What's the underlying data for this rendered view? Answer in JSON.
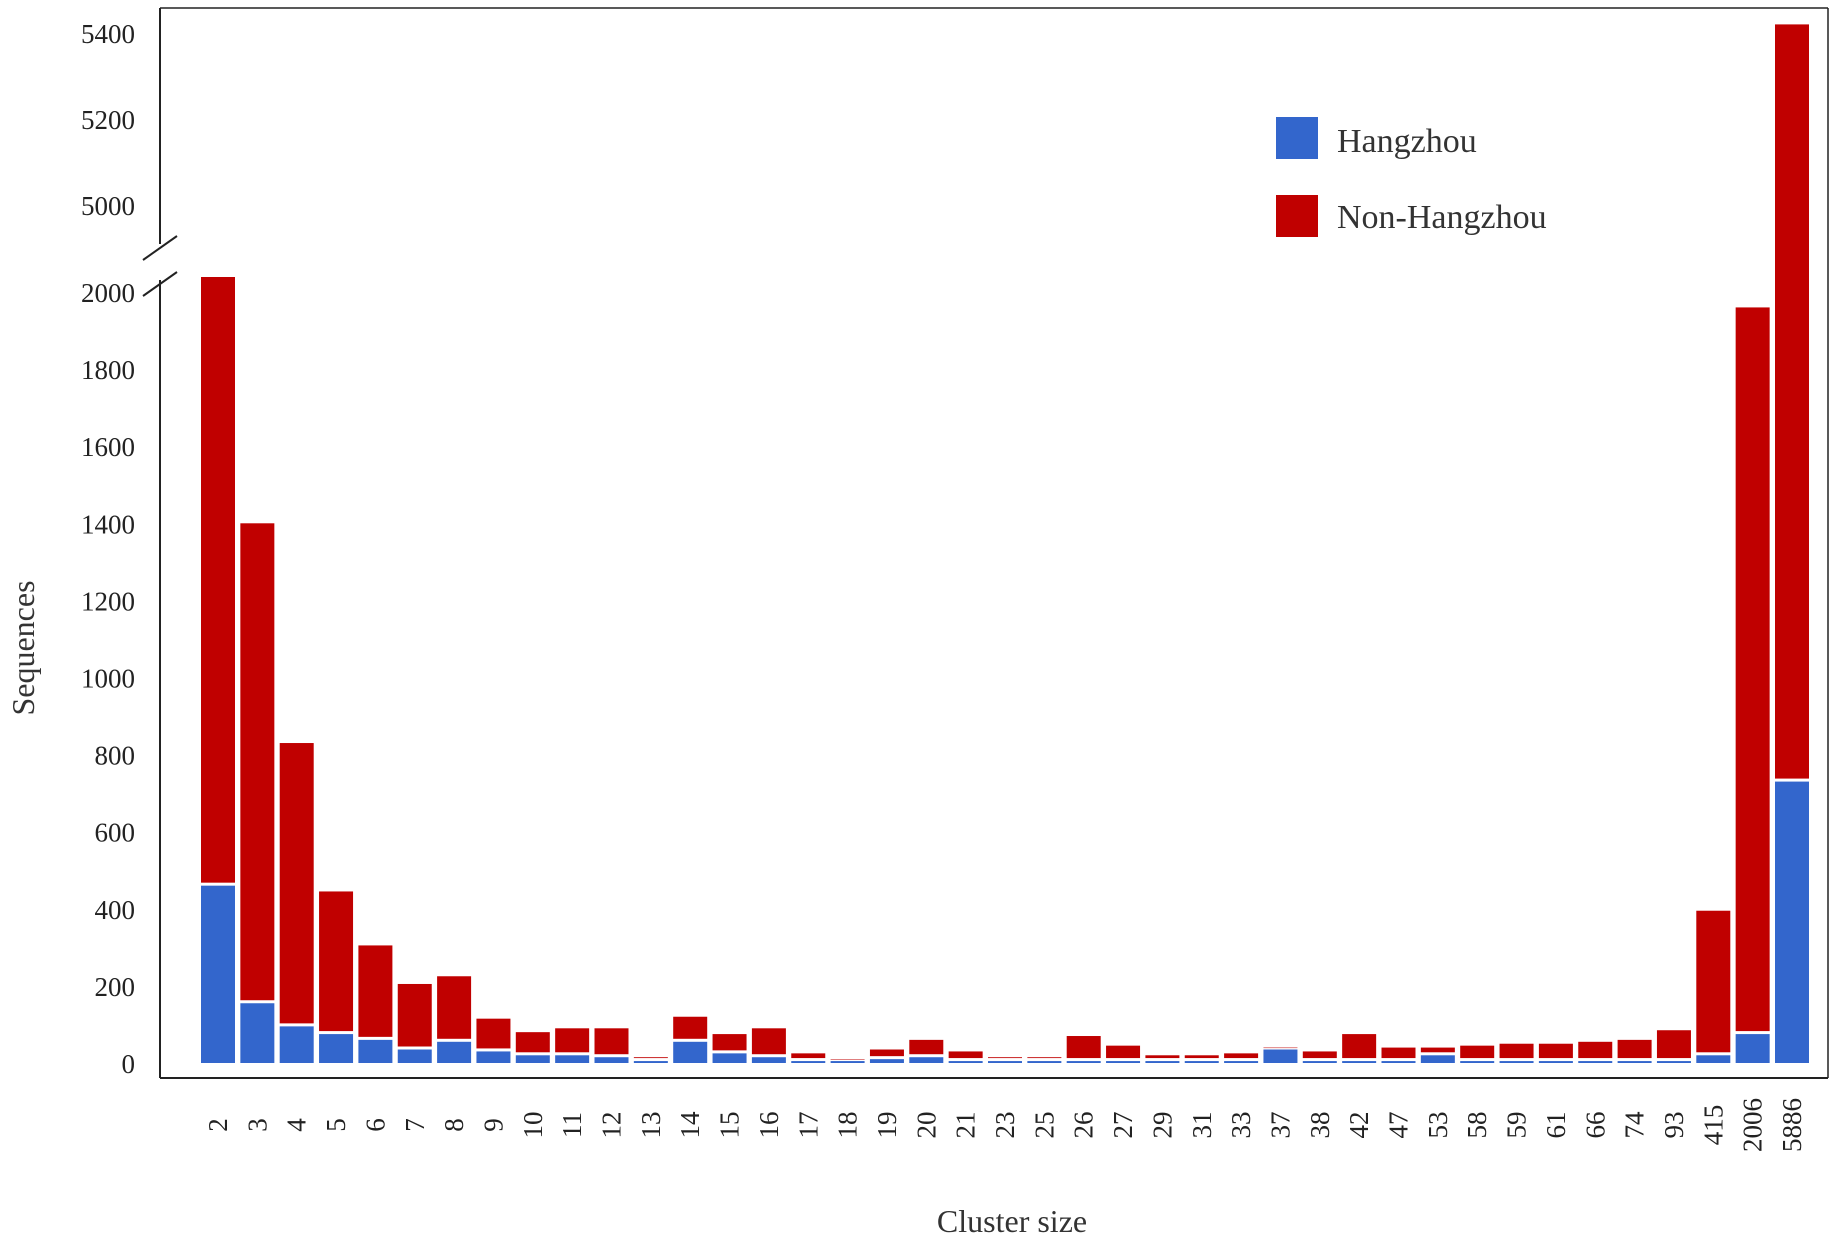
{
  "chart_data": {
    "type": "bar",
    "stacked": true,
    "title": "",
    "xlabel": "Cluster size",
    "ylabel": "Sequences",
    "axis_break": {
      "lower_range": [
        0,
        2000
      ],
      "upper_range": [
        5000,
        5400
      ]
    },
    "y_ticks_lower": [
      "0",
      "200",
      "400",
      "600",
      "800",
      "1000",
      "1200",
      "1400",
      "1600",
      "1800",
      "2000"
    ],
    "y_ticks_upper": [
      "5000",
      "5200",
      "5400"
    ],
    "legend_position": "top-right",
    "categories": [
      "2",
      "3",
      "4",
      "5",
      "6",
      "7",
      "8",
      "9",
      "10",
      "11",
      "12",
      "13",
      "14",
      "15",
      "16",
      "17",
      "18",
      "19",
      "20",
      "21",
      "23",
      "25",
      "26",
      "27",
      "29",
      "31",
      "33",
      "37",
      "38",
      "42",
      "47",
      "53",
      "58",
      "59",
      "61",
      "66",
      "74",
      "93",
      "415",
      "2006",
      "5886"
    ],
    "series": [
      {
        "name": "Hangzhou",
        "color": "#3366cc",
        "values": [
          460,
          155,
          95,
          75,
          60,
          35,
          55,
          30,
          20,
          20,
          15,
          5,
          55,
          25,
          15,
          5,
          5,
          10,
          15,
          5,
          5,
          5,
          5,
          5,
          5,
          5,
          5,
          35,
          5,
          5,
          5,
          20,
          5,
          5,
          5,
          5,
          5,
          5,
          20,
          75,
          730
        ]
      },
      {
        "name": "Non-Hangzhou",
        "color": "#c00000",
        "values": [
          4480,
          1245,
          735,
          370,
          245,
          170,
          170,
          85,
          60,
          70,
          75,
          10,
          65,
          50,
          75,
          20,
          5,
          25,
          45,
          25,
          10,
          10,
          65,
          40,
          15,
          15,
          20,
          5,
          25,
          70,
          35,
          20,
          40,
          45,
          45,
          50,
          55,
          80,
          375,
          1885,
          4690
        ]
      }
    ]
  },
  "legend": {
    "items": [
      {
        "label": "Hangzhou"
      },
      {
        "label": "Non-Hangzhou"
      }
    ]
  }
}
